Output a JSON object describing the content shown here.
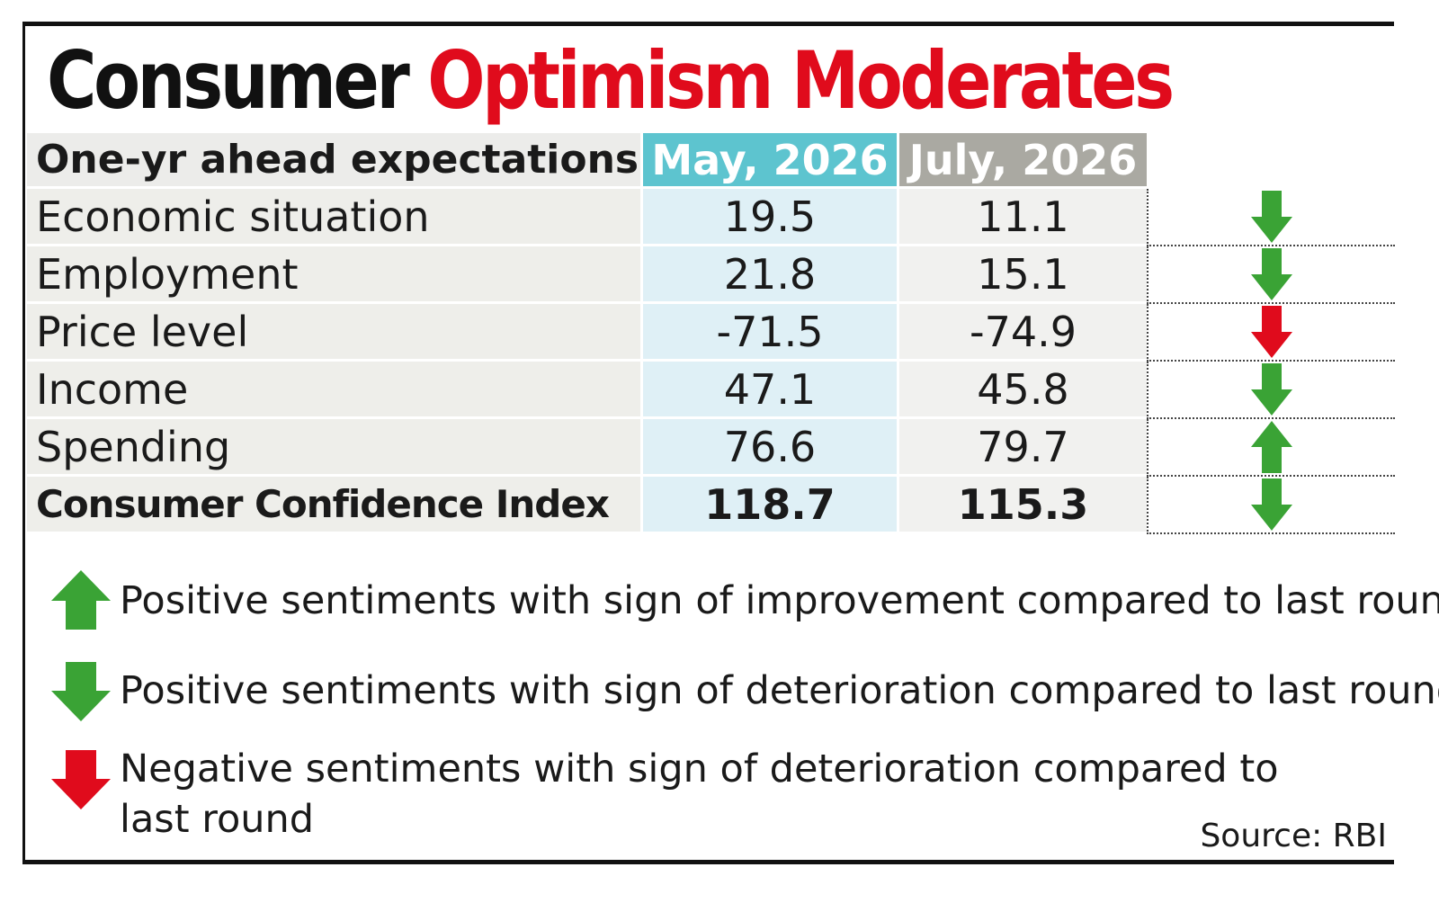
{
  "title": {
    "part1": "Consumer",
    "part2": "Optimism Moderates"
  },
  "colors": {
    "title_red": "#e00b1c",
    "may_header": "#5dc4cf",
    "july_header": "#aaa9a2",
    "arrow_green": "#3aa335",
    "arrow_red": "#e00b1c"
  },
  "chart_data": {
    "type": "table",
    "columns": [
      "One-yr ahead expectations",
      "May, 2026",
      "July, 2026"
    ],
    "rows": [
      {
        "label": "Economic situation",
        "may": "19.5",
        "jul": "11.1",
        "trend": "down-green"
      },
      {
        "label": "Employment",
        "may": "21.8",
        "jul": "15.1",
        "trend": "down-green"
      },
      {
        "label": "Price level",
        "may": "-71.5",
        "jul": "-74.9",
        "trend": "down-red"
      },
      {
        "label": "Income",
        "may": "47.1",
        "jul": "45.8",
        "trend": "down-green"
      },
      {
        "label": "Spending",
        "may": "76.6",
        "jul": "79.7",
        "trend": "up-green"
      },
      {
        "label": "Consumer Confidence Index",
        "may": "118.7",
        "jul": "115.3",
        "trend": "down-green",
        "bold": true
      }
    ]
  },
  "legend": [
    {
      "icon": "up-green-arrow-icon",
      "text": "Positive sentiments with sign of improvement compared to last round"
    },
    {
      "icon": "down-green-arrow-icon",
      "text": "Positive sentiments with sign of deterioration compared to last round"
    },
    {
      "icon": "down-red-arrow-icon",
      "line1": "Negative sentiments with sign of deterioration compared to",
      "line2": "last round"
    }
  ],
  "source": "Source: RBI"
}
